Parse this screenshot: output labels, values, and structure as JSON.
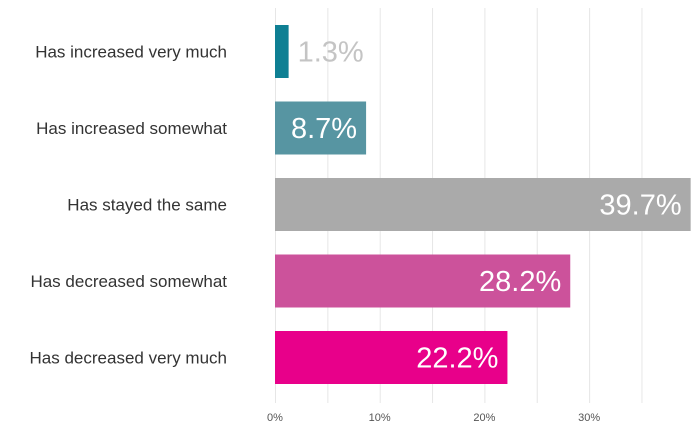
{
  "chart_data": {
    "type": "bar",
    "orientation": "horizontal",
    "categories": [
      "Has increased very much",
      "Has increased somewhat",
      "Has stayed the same",
      "Has decreased somewhat",
      "Has decreased very much"
    ],
    "values": [
      1.3,
      8.7,
      39.7,
      28.2,
      22.2
    ],
    "value_labels": [
      "1.3%",
      "8.7%",
      "39.7%",
      "28.2%",
      "22.2%"
    ],
    "colors": [
      "#0e7f93",
      "#5795a2",
      "#aaaaaa",
      "#cc529b",
      "#e8008a"
    ],
    "value_label_colors": [
      "#c4c4c4",
      "#ffffff",
      "#ffffff",
      "#ffffff",
      "#ffffff"
    ],
    "x_ticks": [
      0,
      10,
      20,
      30
    ],
    "x_tick_labels": [
      "0%",
      "10%",
      "20%",
      "30%"
    ],
    "xlim": [
      0,
      39.7
    ],
    "grid": true,
    "title": "",
    "xlabel": "",
    "ylabel": ""
  }
}
